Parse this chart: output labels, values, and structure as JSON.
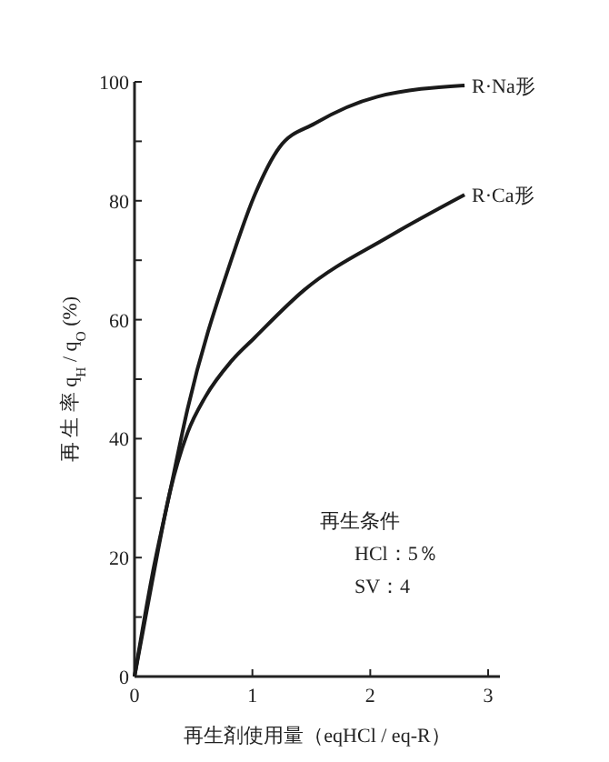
{
  "chart_data": {
    "type": "line",
    "xlabel": "再生剤使用量（eqHCl / eq-R）",
    "ylabel": "再 生 率 q$_{H}$ / q$_{O}$ (%)",
    "series": [
      {
        "name": "R·Na形",
        "color": "#1a1a1a",
        "x": [
          0,
          0.15,
          0.3,
          0.45,
          0.82,
          1.02,
          1.23,
          1.53,
          2.06,
          2.8
        ],
        "values": [
          0,
          17,
          31,
          45,
          70,
          81,
          89,
          93,
          97.5,
          99.4
        ]
      },
      {
        "name": "R·Ca形",
        "color": "#1a1a1a",
        "x": [
          0,
          0.15,
          0.3,
          0.45,
          0.6,
          0.82,
          1.02,
          1.44,
          2.16,
          2.8
        ],
        "values": [
          0,
          16,
          31,
          41,
          47,
          53,
          57,
          65,
          74,
          81
        ]
      }
    ],
    "xlim": [
      0,
      3.1
    ],
    "xticks": [
      0,
      1,
      2,
      3
    ],
    "ylim": [
      0,
      100
    ],
    "yticks": [
      0,
      {
        "value": 10,
        "label": null
      },
      20,
      {
        "value": 30,
        "label": null
      },
      40,
      {
        "value": 50,
        "label": null
      },
      60,
      {
        "value": 70,
        "label": null
      },
      80,
      {
        "value": 90,
        "label": null
      },
      100
    ],
    "annotations": [
      "再生条件",
      "HCl：5％",
      "SV：4"
    ],
    "grid": false,
    "marker": "none",
    "line_style": "solid"
  }
}
